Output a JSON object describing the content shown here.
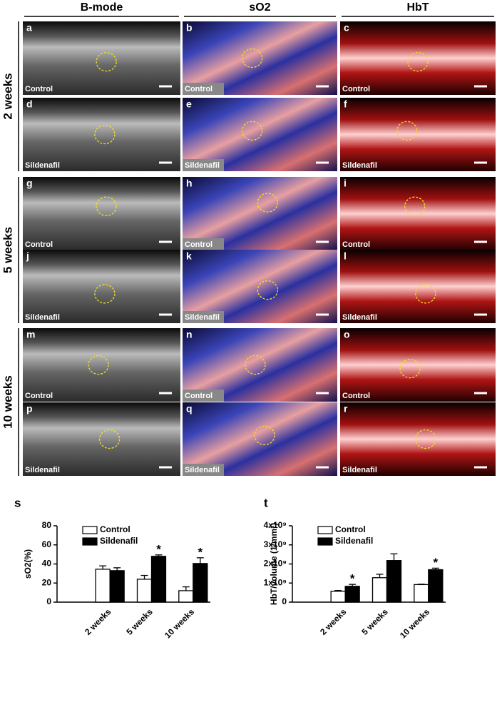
{
  "columns": [
    "B-mode",
    "sO2",
    "HbT"
  ],
  "rows": [
    "2 weeks",
    "5 weeks",
    "10 weeks"
  ],
  "panels": [
    {
      "letter": "a",
      "label": "Control"
    },
    {
      "letter": "b",
      "label": "Control"
    },
    {
      "letter": "c",
      "label": "Control"
    },
    {
      "letter": "d",
      "label": "Sildenafil"
    },
    {
      "letter": "e",
      "label": "Sildenafil"
    },
    {
      "letter": "f",
      "label": "Sildenafil"
    },
    {
      "letter": "g",
      "label": "Control"
    },
    {
      "letter": "h",
      "label": "Control"
    },
    {
      "letter": "i",
      "label": "Control"
    },
    {
      "letter": "j",
      "label": "Sildenafil"
    },
    {
      "letter": "k",
      "label": "Sildenafil"
    },
    {
      "letter": "l",
      "label": "Sildenafil"
    },
    {
      "letter": "m",
      "label": "Control"
    },
    {
      "letter": "n",
      "label": "Control"
    },
    {
      "letter": "o",
      "label": "Control"
    },
    {
      "letter": "p",
      "label": "Sildenafil"
    },
    {
      "letter": "q",
      "label": "Sildenafil"
    },
    {
      "letter": "r",
      "label": "Sildenafil"
    }
  ],
  "chart_data": [
    {
      "type": "bar",
      "title": "s",
      "ylabel": "sO2(%)",
      "categories": [
        "2 weeks",
        "5 weeks",
        "10 weeks"
      ],
      "series": [
        {
          "name": "Control",
          "color": "#ffffff",
          "values": [
            34.5,
            24,
            12
          ],
          "errors": [
            3.5,
            4,
            4
          ],
          "significance": [
            null,
            null,
            null
          ]
        },
        {
          "name": "Sildenafil",
          "color": "#000000",
          "values": [
            33,
            48,
            40.5
          ],
          "errors": [
            3,
            1.5,
            6
          ],
          "significance": [
            null,
            "*",
            "*"
          ]
        }
      ],
      "ylim": [
        0,
        80
      ],
      "yticks": [
        0,
        20,
        40,
        60,
        80
      ]
    },
    {
      "type": "bar",
      "title": "t",
      "ylabel": "HbT/volume (1/mm³)",
      "categories": [
        "2 weeks",
        "5 weeks",
        "10 weeks"
      ],
      "series": [
        {
          "name": "Control",
          "color": "#ffffff",
          "values": [
            570000000,
            1280000000,
            920000000
          ],
          "errors": [
            40000000,
            180000000,
            20000000
          ],
          "significance": [
            null,
            null,
            null
          ]
        },
        {
          "name": "Sildenafil",
          "color": "#000000",
          "values": [
            830000000,
            2180000000,
            1700000000
          ],
          "errors": [
            100000000,
            350000000,
            80000000
          ],
          "significance": [
            "*",
            null,
            "*"
          ]
        }
      ],
      "ylim": [
        0,
        4000000000
      ],
      "yticks": [
        0,
        {
          "value": 1000000000,
          "label": "1x10⁹"
        },
        {
          "value": 2000000000,
          "label": "2x10⁹"
        },
        {
          "value": 3000000000,
          "label": "3x10⁹"
        },
        {
          "value": 4000000000,
          "label": "4x10⁹"
        }
      ]
    }
  ]
}
